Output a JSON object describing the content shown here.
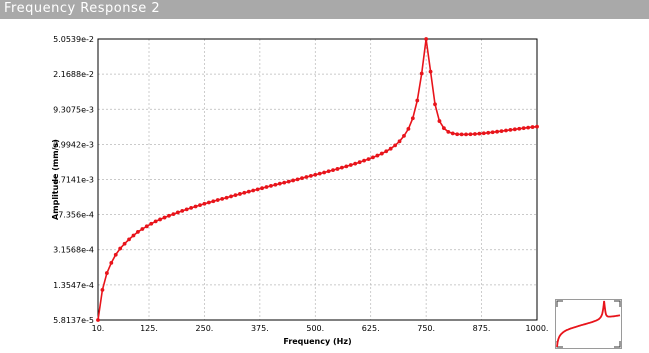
{
  "window": {
    "title": "Frequency Response 2"
  },
  "colors": {
    "series": "#e8141b",
    "titlebar": "#a9a9a9",
    "grid": "#b8b8b8"
  },
  "chart_data": {
    "type": "line",
    "title": "",
    "xlabel": "Frequency (Hz)",
    "ylabel": "Amplitude (mm/s)",
    "xlim": [
      10,
      1000
    ],
    "ylim": [
      5.8137e-05,
      0.050539
    ],
    "yscale": "log",
    "grid": true,
    "markers": true,
    "x_ticks": [
      "10.",
      "125.",
      "250.",
      "375.",
      "500.",
      "625.",
      "750.",
      "875.",
      "1000."
    ],
    "x_tick_values": [
      10,
      125,
      250,
      375,
      500,
      625,
      750,
      875,
      1000
    ],
    "y_ticks": [
      "5.0539e-2",
      "2.1688e-2",
      "9.3075e-3",
      "3.9942e-3",
      "1.7141e-3",
      "7.356e-4",
      "3.1568e-4",
      "1.3547e-4",
      "5.8137e-5"
    ],
    "y_tick_values": [
      0.050539,
      0.021688,
      0.0093075,
      0.0039942,
      0.0017141,
      0.0007356,
      0.00031568,
      0.00013547,
      5.8137e-05
    ],
    "series": [
      {
        "x": [
          10,
          20,
          30,
          40,
          50,
          60,
          70,
          80,
          90,
          100,
          110,
          120,
          130,
          140,
          150,
          160,
          170,
          180,
          190,
          200,
          210,
          220,
          230,
          240,
          250,
          260,
          270,
          280,
          290,
          300,
          310,
          320,
          330,
          340,
          350,
          360,
          370,
          380,
          390,
          400,
          410,
          420,
          430,
          440,
          450,
          460,
          470,
          480,
          490,
          500,
          510,
          520,
          530,
          540,
          550,
          560,
          570,
          580,
          590,
          600,
          610,
          620,
          630,
          640,
          650,
          660,
          670,
          680,
          690,
          700,
          710,
          720,
          730,
          740,
          750,
          760,
          770,
          780,
          790,
          800,
          810,
          820,
          830,
          840,
          850,
          860,
          870,
          880,
          890,
          900,
          910,
          920,
          930,
          940,
          950,
          960,
          970,
          980,
          990,
          1000
        ],
        "y": [
          5.8137e-05,
          0.00012,
          0.00018,
          0.00023,
          0.00028,
          0.000325,
          0.000365,
          0.000405,
          0.000445,
          0.000485,
          0.00052,
          0.000555,
          0.00059,
          0.000625,
          0.000655,
          0.000685,
          0.000715,
          0.000745,
          0.000775,
          0.000805,
          0.000835,
          0.000865,
          0.000895,
          0.000925,
          0.000955,
          0.000985,
          0.001015,
          0.001045,
          0.001075,
          0.001105,
          0.00114,
          0.001175,
          0.00121,
          0.001245,
          0.00128,
          0.001315,
          0.00135,
          0.00139,
          0.00143,
          0.00147,
          0.00151,
          0.00155,
          0.00159,
          0.00163,
          0.001675,
          0.00172,
          0.00177,
          0.00182,
          0.00187,
          0.00192,
          0.001975,
          0.00203,
          0.00209,
          0.00215,
          0.00221,
          0.00228,
          0.00235,
          0.00243,
          0.00251,
          0.0026,
          0.0027,
          0.0028,
          0.00292,
          0.00305,
          0.0032,
          0.00338,
          0.0036,
          0.0039,
          0.0043,
          0.0049,
          0.0058,
          0.0075,
          0.0115,
          0.022,
          0.050539,
          0.023,
          0.0105,
          0.007,
          0.0059,
          0.0054,
          0.0052,
          0.0051,
          0.00508,
          0.00508,
          0.0051,
          0.00513,
          0.00517,
          0.00522,
          0.00528,
          0.00535,
          0.00542,
          0.0055,
          0.00558,
          0.00566,
          0.00574,
          0.00582,
          0.0059,
          0.00598,
          0.00606,
          0.00612
        ]
      }
    ]
  }
}
